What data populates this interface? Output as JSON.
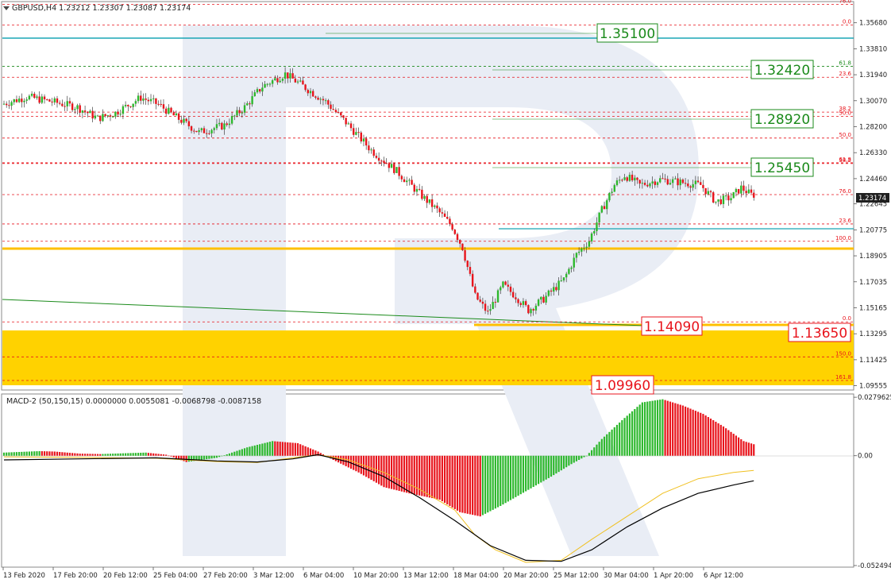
{
  "window": {
    "symbol_header": "GBPUSD,H4  1.23212 1.23307 1.23087 1.23174"
  },
  "macd_header": "MACD-2 (50,150,15) 0.0000000 0.0055081 -0.0068798 -0.0087158",
  "colors": {
    "bull": "#2db82d",
    "bear": "#e8141c",
    "fib_dashed": "#e8141c",
    "fib_green": "#1a8a1a",
    "teal": "#1aa5b5",
    "yellow_band": "#ffd200",
    "yellow_line": "#f0c000",
    "signal_line": "#f0c020",
    "macd_line": "#000000",
    "watermark": "#e9edf5"
  },
  "chart_data": [
    {
      "type": "candlestick",
      "ylim": [
        1.0936,
        1.3709
      ],
      "price_ticks": [
        "1.35680",
        "1.33810",
        "1.31940",
        "1.30070",
        "1.28200",
        "1.26330",
        "1.24460",
        "1.22645",
        "1.20775",
        "1.18905",
        "1.17035",
        "1.15165",
        "1.13295",
        "1.11425",
        "1.09555"
      ],
      "x_labels": [
        "13 Feb 2020",
        "17 Feb 20:00",
        "20 Feb 12:00",
        "25 Feb 04:00",
        "27 Feb 20:00",
        "3 Mar 12:00",
        "6 Mar 04:00",
        "10 Mar 20:00",
        "13 Mar 12:00",
        "18 Mar 04:00",
        "20 Mar 20:00",
        "25 Mar 12:00",
        "30 Mar 04:00",
        "1 Apr 20:00",
        "6 Apr 12:00"
      ],
      "current_price": "1.23174",
      "path_points": [
        [
          0,
          1.298
        ],
        [
          10,
          1.3035
        ],
        [
          20,
          1.3
        ],
        [
          30,
          1.296
        ],
        [
          38,
          1.288
        ],
        [
          45,
          1.292
        ],
        [
          55,
          1.303
        ],
        [
          62,
          1.298
        ],
        [
          68,
          1.29
        ],
        [
          78,
          1.278
        ],
        [
          88,
          1.283
        ],
        [
          96,
          1.296
        ],
        [
          103,
          1.311
        ],
        [
          112,
          1.32
        ],
        [
          120,
          1.31
        ],
        [
          128,
          1.3
        ],
        [
          136,
          1.285
        ],
        [
          146,
          1.265
        ],
        [
          156,
          1.25
        ],
        [
          166,
          1.232
        ],
        [
          172,
          1.222
        ],
        [
          178,
          1.21
        ],
        [
          182,
          1.195
        ],
        [
          187,
          1.16
        ],
        [
          192,
          1.148
        ],
        [
          198,
          1.168
        ],
        [
          203,
          1.16
        ],
        [
          208,
          1.15
        ],
        [
          214,
          1.158
        ],
        [
          218,
          1.165
        ],
        [
          222,
          1.172
        ],
        [
          227,
          1.19
        ],
        [
          232,
          1.2
        ],
        [
          237,
          1.222
        ],
        [
          242,
          1.24
        ],
        [
          246,
          1.247
        ],
        [
          252,
          1.24
        ],
        [
          260,
          1.244
        ],
        [
          268,
          1.242
        ],
        [
          276,
          1.24
        ],
        [
          282,
          1.228
        ],
        [
          288,
          1.231
        ],
        [
          292,
          1.238
        ],
        [
          296,
          1.233
        ]
      ],
      "fibonacci": {
        "upper_levels": [
          {
            "label": "76.0",
            "price": 1.3701
          },
          {
            "label": "0.0",
            "price": 1.3551
          },
          {
            "label": "61.8",
            "price": 1.3254
          },
          {
            "label": "23.6",
            "price": 1.3176
          },
          {
            "label": "38.2",
            "price": 1.2925
          },
          {
            "label": "50.0",
            "price": 1.2895
          },
          {
            "label": "50.0",
            "price": 1.2738
          },
          {
            "label": "61.8",
            "price": 1.256
          },
          {
            "label": "38.2",
            "price": 1.2555
          },
          {
            "label": "76.0",
            "price": 1.2331
          },
          {
            "label": "23.6",
            "price": 1.212
          }
        ],
        "lower_levels": [
          {
            "label": "100.0",
            "price": 1.1995
          },
          {
            "label": "0.0",
            "price": 1.1415
          },
          {
            "label": "150.0",
            "price": 1.1163
          },
          {
            "label": "161.8",
            "price": 1.0993
          }
        ]
      },
      "targets": [
        {
          "label": "1.35100",
          "kind": "resistance"
        },
        {
          "label": "1.32420",
          "kind": "resistance"
        },
        {
          "label": "1.28920",
          "kind": "resistance"
        },
        {
          "label": "1.25450",
          "kind": "resistance"
        },
        {
          "label": "1.14090",
          "kind": "support"
        },
        {
          "label": "1.13650",
          "kind": "support"
        },
        {
          "label": "1.09960",
          "kind": "support"
        }
      ]
    },
    {
      "type": "bar",
      "title": "MACD-2 (50,150,15)",
      "yticks": [
        "0.0279625",
        "0.00",
        "-0.052494"
      ],
      "ylim": [
        -0.0525,
        0.028
      ],
      "histogram": [
        [
          0,
          0.0015
        ],
        [
          14,
          0.0022
        ],
        [
          20,
          0.002
        ],
        [
          30,
          0.001
        ],
        [
          38,
          0.0008
        ],
        [
          48,
          0.0012
        ],
        [
          56,
          0.0015
        ],
        [
          64,
          0.0005
        ],
        [
          72,
          -0.003
        ],
        [
          84,
          -0.001
        ],
        [
          96,
          0.004
        ],
        [
          106,
          0.007
        ],
        [
          116,
          0.006
        ],
        [
          124,
          0.002
        ],
        [
          130,
          -0.002
        ],
        [
          140,
          -0.008
        ],
        [
          150,
          -0.015
        ],
        [
          160,
          -0.018
        ],
        [
          172,
          -0.021
        ],
        [
          180,
          -0.027
        ],
        [
          188,
          -0.029
        ],
        [
          196,
          -0.024
        ],
        [
          206,
          -0.017
        ],
        [
          216,
          -0.01
        ],
        [
          224,
          -0.004
        ],
        [
          230,
          0.0
        ],
        [
          236,
          0.008
        ],
        [
          244,
          0.017
        ],
        [
          252,
          0.0255
        ],
        [
          260,
          0.027
        ],
        [
          268,
          0.024
        ],
        [
          276,
          0.02
        ],
        [
          284,
          0.014
        ],
        [
          292,
          0.007
        ],
        [
          296,
          0.0055
        ]
      ],
      "macd_line": [
        [
          0,
          -0.002
        ],
        [
          30,
          -0.0015
        ],
        [
          60,
          -0.001
        ],
        [
          84,
          -0.0025
        ],
        [
          100,
          -0.003
        ],
        [
          114,
          -0.0015
        ],
        [
          124,
          0.0005
        ],
        [
          136,
          -0.003
        ],
        [
          150,
          -0.01
        ],
        [
          164,
          -0.02
        ],
        [
          178,
          -0.031
        ],
        [
          192,
          -0.043
        ],
        [
          206,
          -0.05
        ],
        [
          220,
          -0.0505
        ],
        [
          232,
          -0.045
        ],
        [
          246,
          -0.034
        ],
        [
          260,
          -0.025
        ],
        [
          274,
          -0.018
        ],
        [
          288,
          -0.014
        ],
        [
          296,
          -0.012
        ]
      ],
      "signal_line": [
        [
          0,
          -0.0005
        ],
        [
          30,
          -0.0008
        ],
        [
          60,
          -0.0012
        ],
        [
          84,
          -0.0028
        ],
        [
          100,
          -0.0032
        ],
        [
          114,
          -0.001
        ],
        [
          124,
          0.0005
        ],
        [
          136,
          -0.002
        ],
        [
          150,
          -0.008
        ],
        [
          164,
          -0.016
        ],
        [
          178,
          -0.026
        ],
        [
          186,
          -0.038
        ],
        [
          194,
          -0.045
        ],
        [
          206,
          -0.051
        ],
        [
          220,
          -0.05
        ],
        [
          232,
          -0.04
        ],
        [
          246,
          -0.029
        ],
        [
          260,
          -0.018
        ],
        [
          274,
          -0.011
        ],
        [
          288,
          -0.008
        ],
        [
          296,
          -0.007
        ]
      ]
    }
  ]
}
